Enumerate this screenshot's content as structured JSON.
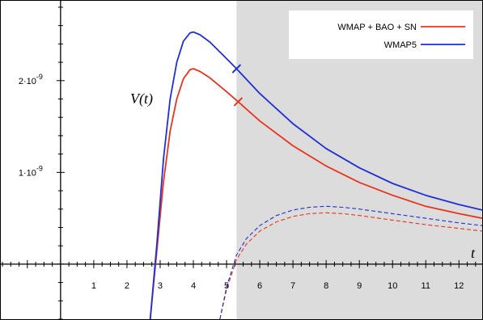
{
  "chart_data": {
    "type": "line",
    "xlabel": "t",
    "ylabel": "V(t)",
    "xlim": [
      -1.8,
      12.7
    ],
    "ylim": [
      -6e-10,
      2.87e-09
    ],
    "shaded_region": {
      "x_from": 5.3,
      "x_to": 12.7,
      "color": "#dcdcdc"
    },
    "x_ticks": [
      {
        "value": 1,
        "label": "1"
      },
      {
        "value": 2,
        "label": "2"
      },
      {
        "value": 3,
        "label": "3"
      },
      {
        "value": 4,
        "label": "4"
      },
      {
        "value": 5,
        "label": "5"
      },
      {
        "value": 6,
        "label": "6"
      },
      {
        "value": 7,
        "label": "7"
      },
      {
        "value": 8,
        "label": "8"
      },
      {
        "value": 9,
        "label": "9"
      },
      {
        "value": 10,
        "label": "10"
      },
      {
        "value": 11,
        "label": "11"
      },
      {
        "value": 12,
        "label": "12"
      }
    ],
    "y_ticks": [
      {
        "value": 1e-09,
        "mantissa": "1·10",
        "exponent": "-9"
      },
      {
        "value": 2e-09,
        "mantissa": "2·10",
        "exponent": "-9"
      }
    ],
    "legend_position": "top-right",
    "series": [
      {
        "name": "WMAP + BAO + SN",
        "color": "#e8341c",
        "style": "solid",
        "marker_x": 5.35,
        "x": [
          2.7,
          2.9,
          3.1,
          3.3,
          3.5,
          3.7,
          3.9,
          4.0,
          4.2,
          4.5,
          5.0,
          5.35,
          6.0,
          7.0,
          8.0,
          9.0,
          10.0,
          11.0,
          12.0,
          12.7
        ],
        "y": [
          -6e-10,
          1.5e-10,
          9e-10,
          1.45e-09,
          1.8e-09,
          2.02e-09,
          2.12e-09,
          2.13e-09,
          2.1e-09,
          2.03e-09,
          1.88e-09,
          1.77e-09,
          1.56e-09,
          1.29e-09,
          1.07e-09,
          8.9e-10,
          7.5e-10,
          6.3e-10,
          5.5e-10,
          5e-10
        ]
      },
      {
        "name": "WMAP5",
        "color": "#1c2fd8",
        "style": "solid",
        "marker_x": 5.3,
        "x": [
          2.7,
          2.9,
          3.1,
          3.3,
          3.5,
          3.7,
          3.9,
          4.0,
          4.2,
          4.5,
          5.0,
          5.3,
          6.0,
          7.0,
          8.0,
          9.0,
          10.0,
          11.0,
          12.0,
          12.7
        ],
        "y": [
          -6e-10,
          2.2e-10,
          1.15e-09,
          1.8e-09,
          2.2e-09,
          2.43e-09,
          2.52e-09,
          2.53e-09,
          2.5e-09,
          2.42e-09,
          2.24e-09,
          2.13e-09,
          1.86e-09,
          1.53e-09,
          1.26e-09,
          1.05e-09,
          8.8e-10,
          7.5e-10,
          6.5e-10,
          5.9e-10
        ]
      },
      {
        "name": "",
        "color": "#e8341c",
        "style": "dashed",
        "x": [
          4.8,
          5.0,
          5.3,
          5.6,
          6.0,
          6.5,
          7.0,
          7.5,
          8.0,
          8.5,
          9.0,
          10.0,
          11.0,
          12.0,
          12.7
        ],
        "y": [
          -6e-10,
          -2.8e-10,
          5e-11,
          2.2e-10,
          3.6e-10,
          4.6e-10,
          5.2e-10,
          5.5e-10,
          5.6e-10,
          5.5e-10,
          5.3e-10,
          4.8e-10,
          4.3e-10,
          3.9e-10,
          3.6e-10
        ]
      },
      {
        "name": "",
        "color": "#1c2fd8",
        "style": "dashed",
        "x": [
          4.8,
          5.0,
          5.3,
          5.6,
          6.0,
          6.5,
          7.0,
          7.5,
          8.0,
          8.5,
          9.0,
          10.0,
          11.0,
          12.0,
          12.7
        ],
        "y": [
          -6e-10,
          -2.5e-10,
          1e-10,
          2.8e-10,
          4.2e-10,
          5.3e-10,
          5.9e-10,
          6.2e-10,
          6.3e-10,
          6.2e-10,
          6e-10,
          5.5e-10,
          5e-10,
          4.5e-10,
          4.2e-10
        ]
      }
    ]
  }
}
